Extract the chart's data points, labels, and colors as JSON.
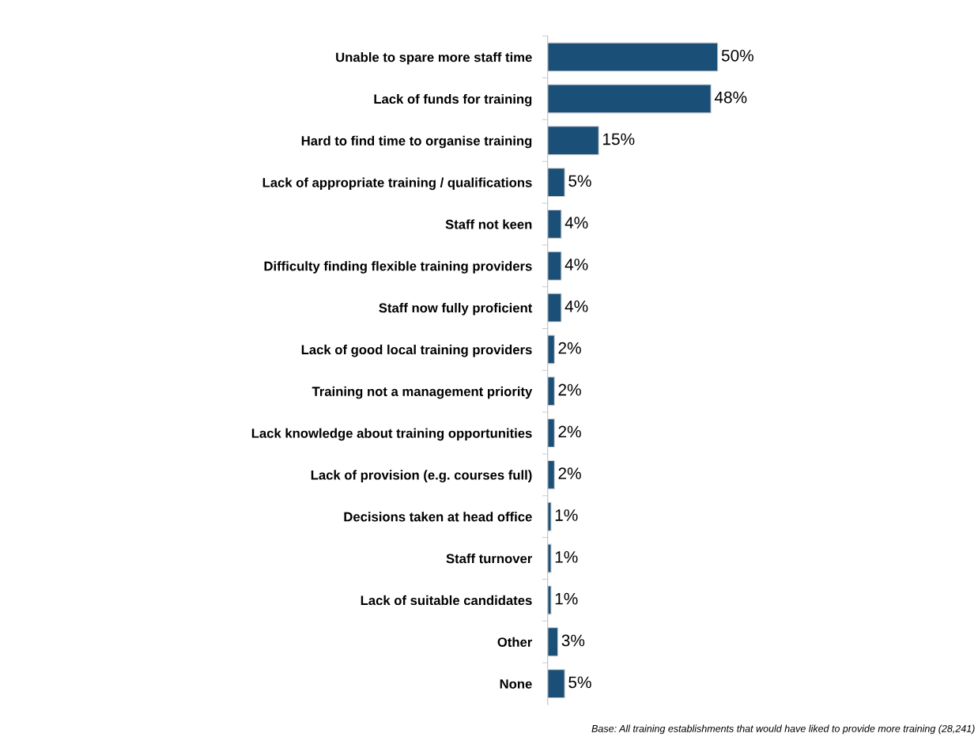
{
  "chart_data": {
    "type": "bar",
    "orientation": "horizontal",
    "data_labels": true,
    "grid": false,
    "legend": false,
    "tick_labels": "y",
    "categories": [
      "Unable to spare more staff time",
      "Lack of funds for training",
      "Hard to find time to organise training",
      "Lack of appropriate training / qualifications",
      "Staff not keen",
      "Difficulty finding flexible training providers",
      "Staff now fully proficient",
      "Lack of good local training providers",
      "Training not a management priority",
      "Lack knowledge about training opportunities",
      "Lack of provision (e.g. courses full)",
      "Decisions taken at head office",
      "Staff turnover",
      "Lack of suitable candidates",
      "Other",
      "None"
    ],
    "values": [
      50,
      48,
      15,
      5,
      4,
      4,
      4,
      2,
      2,
      2,
      2,
      1,
      1,
      1,
      3,
      5
    ],
    "value_labels": [
      "50%",
      "48%",
      "15%",
      "5%",
      "4%",
      "4%",
      "4%",
      "2%",
      "2%",
      "2%",
      "2%",
      "1%",
      "1%",
      "1%",
      "3%",
      "5%"
    ],
    "color": "#1a4f78",
    "annotations": [
      "Base: All training establishments that would have liked to provide more training (28,241)"
    ]
  }
}
